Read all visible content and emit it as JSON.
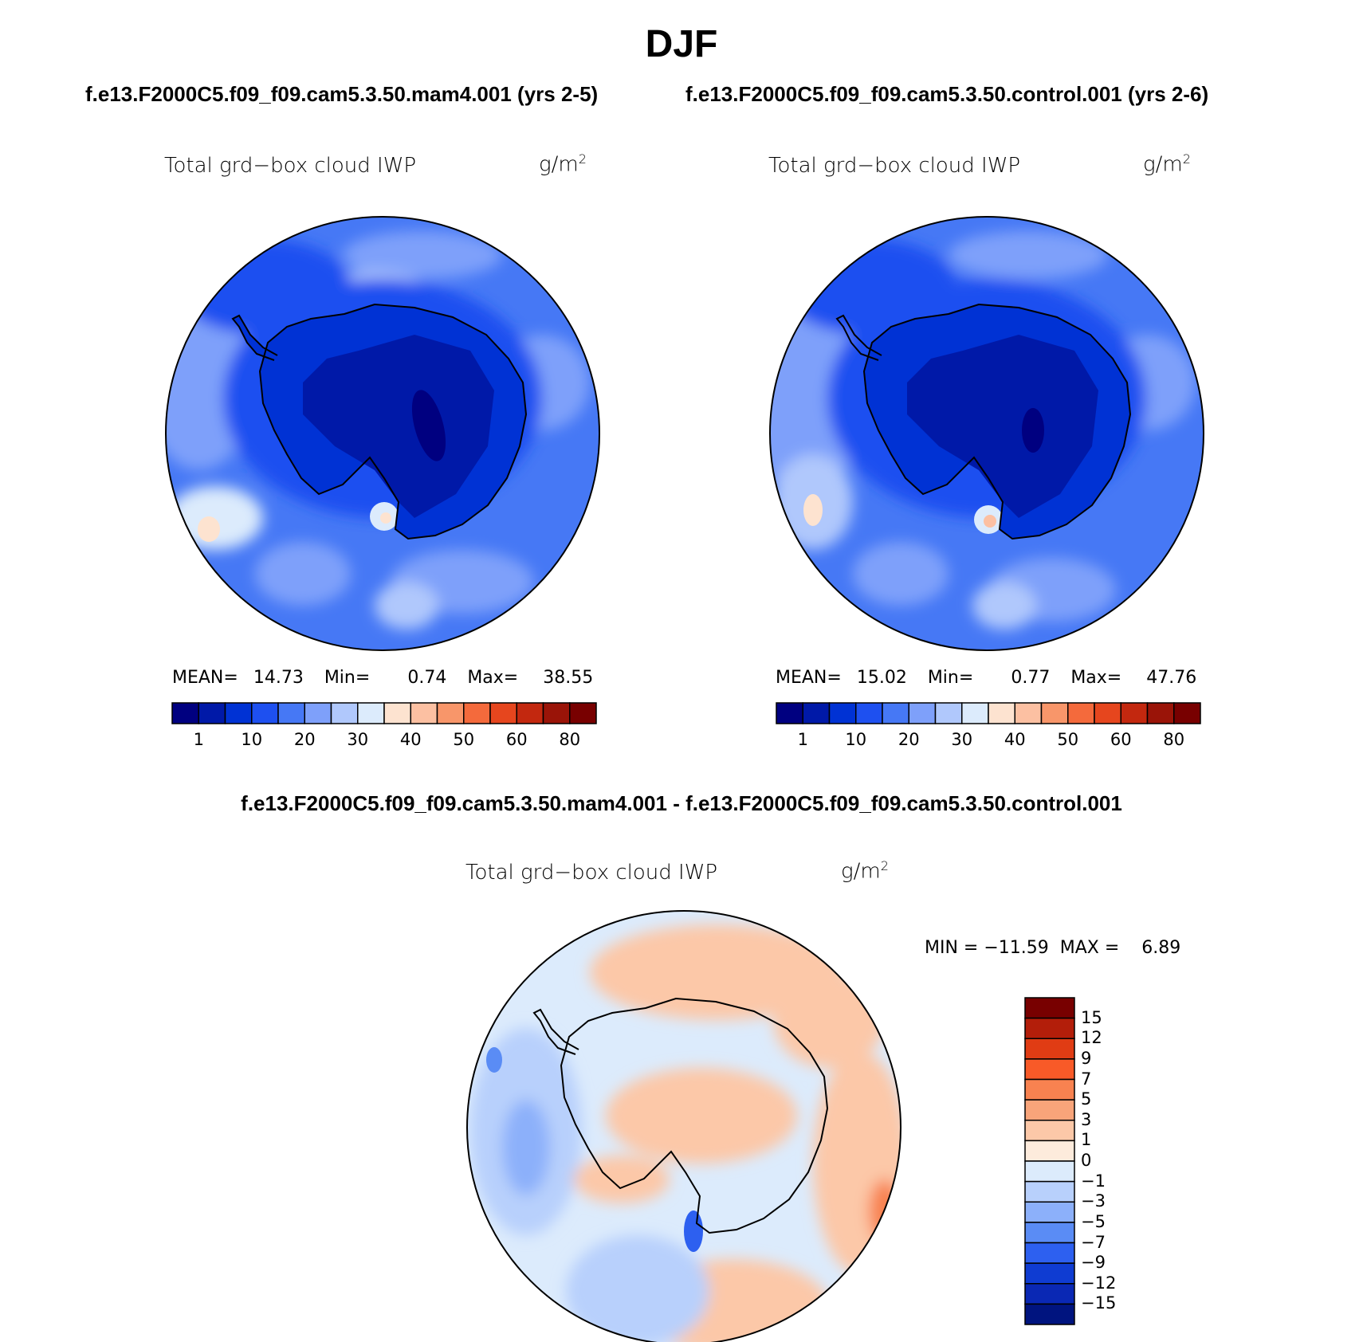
{
  "season": "DJF",
  "case1": {
    "title": "f.e13.F2000C5.f09_f09.cam5.3.50.mam4.001 (yrs 2-5)"
  },
  "case2": {
    "title": "f.e13.F2000C5.f09_f09.cam5.3.50.control.001 (yrs 2-6)"
  },
  "diff": {
    "title": "f.e13.F2000C5.f09_f09.cam5.3.50.mam4.001 - f.e13.F2000C5.f09_f09.cam5.3.50.control.001"
  },
  "variable": {
    "label": "Total grd−box cloud IWP",
    "units_base": "g/m",
    "units_exp": "2"
  },
  "panel1": {
    "mean_label": "MEAN=",
    "mean": "14.73",
    "min_label": "Min=",
    "min": "0.74",
    "max_label": "Max=",
    "max": "38.55"
  },
  "panel2": {
    "mean_label": "MEAN=",
    "mean": "15.02",
    "min_label": "Min=",
    "min": "0.77",
    "max_label": "Max=",
    "max": "47.76"
  },
  "panel3": {
    "minmax_text": "MIN = −11.59  MAX =    6.89"
  },
  "abs_colorbar": {
    "ticks": [
      "1",
      "10",
      "20",
      "30",
      "40",
      "50",
      "60",
      "80"
    ],
    "colors": [
      "#000080",
      "#0019a8",
      "#0032d4",
      "#1e50f0",
      "#4678f5",
      "#7ea0fa",
      "#b0c8fc",
      "#dcebfc",
      "#fde3d0",
      "#fcc0a2",
      "#f8966a",
      "#f46a3c",
      "#e6461e",
      "#c3280f",
      "#9a1408",
      "#780000"
    ]
  },
  "diff_colorbar": {
    "ticks": [
      "15",
      "12",
      "9",
      "7",
      "5",
      "3",
      "1",
      "0",
      "−1",
      "−3",
      "−5",
      "−7",
      "−9",
      "−12",
      "−15"
    ],
    "colors": [
      "#780000",
      "#b31e0a",
      "#e03c14",
      "#f85a28",
      "#f88250",
      "#f8a47a",
      "#fcc8a8",
      "#fdebdc",
      "#dcebfc",
      "#b8d0fc",
      "#8cb0fa",
      "#5a8cf5",
      "#2d60f0",
      "#0f3cd2",
      "#0a28b4",
      "#00147f"
    ]
  },
  "colors": {
    "ocean_light": "#7ea0fa",
    "ocean_mid": "#4678f5",
    "ocean_dark": "#1e50f0",
    "land_dark": "#0032d4",
    "land_deep": "#0019a8",
    "diff_pos": "#fcc8a8",
    "diff_neg": "#b8d0fc"
  }
}
